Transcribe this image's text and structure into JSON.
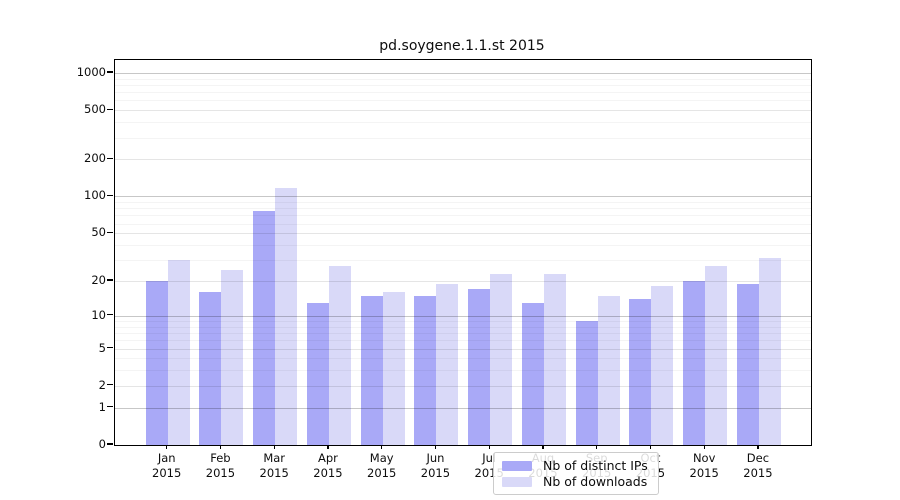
{
  "title": "pd.soygene.1.1.st 2015",
  "chart_data": {
    "type": "bar",
    "title": "pd.soygene.1.1.st 2015",
    "categories": [
      "Jan 2015",
      "Feb 2015",
      "Mar 2015",
      "Apr 2015",
      "May 2015",
      "Jun 2015",
      "Jul 2015",
      "Aug 2015",
      "Sep 2015",
      "Oct 2015",
      "Nov 2015",
      "Dec 2015"
    ],
    "series": [
      {
        "name": "Nb of distinct IPs",
        "color": "#a9a9f7",
        "values": [
          20,
          16,
          76,
          13,
          15,
          15,
          17,
          13,
          9,
          14,
          20,
          19
        ]
      },
      {
        "name": "Nb of downloads",
        "color": "#d9d9f8",
        "values": [
          30,
          25,
          118,
          27,
          16,
          19,
          23,
          23,
          15,
          18,
          27,
          31
        ]
      }
    ],
    "y_tick_labels": [
      "0",
      "1",
      "2",
      "5",
      "10",
      "20",
      "50",
      "100",
      "200",
      "500",
      "1000"
    ],
    "y_scale": "log1p",
    "ylim": [
      0,
      1270
    ],
    "xlabel": "",
    "ylabel": "",
    "grid": true,
    "legend_position": "inside-bottom-center"
  }
}
